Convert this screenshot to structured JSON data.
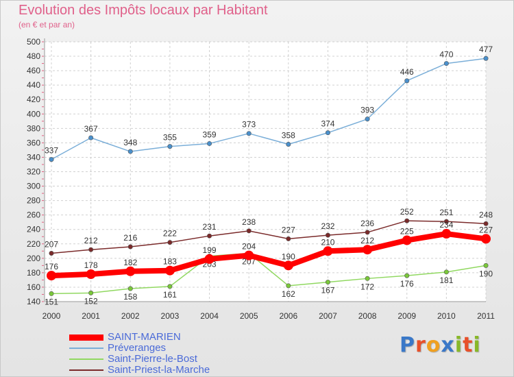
{
  "header": {
    "title": "Evolution des Impôts locaux par Habitant",
    "subtitle": "(en € et par an)"
  },
  "logo": {
    "text": "Proxiti",
    "letter_colors": [
      "#3a78c8",
      "#e8502a",
      "#f0a020",
      "#3a78c8",
      "#88b828",
      "#e8502a",
      "#88b828"
    ]
  },
  "colors": {
    "title": "#e0608a",
    "axis_labels": "#333333",
    "grid": "#d0d0d0"
  },
  "chart_data": {
    "type": "line",
    "x": [
      "2000",
      "2001",
      "2002",
      "2003",
      "2004",
      "2005",
      "2006",
      "2007",
      "2008",
      "2009",
      "2010",
      "2011"
    ],
    "ylim": [
      140,
      500
    ],
    "yticks": [
      140,
      160,
      180,
      200,
      220,
      240,
      260,
      280,
      300,
      320,
      340,
      360,
      380,
      400,
      420,
      440,
      460,
      480,
      500
    ],
    "grid": true,
    "legend_position": "bottom-left",
    "series": [
      {
        "name": "Saint-Priest-la-Marche",
        "color": "#7a2a2a",
        "point_color": "#7a2a2a",
        "thick": false,
        "label_offset": -1,
        "values": [
          207,
          212,
          216,
          222,
          231,
          238,
          227,
          232,
          236,
          252,
          251,
          248
        ]
      },
      {
        "name": "Saint-Pierre-le-Bost",
        "color": "#90d860",
        "point_color": "#7ac83a",
        "thick": false,
        "label_offset": 1,
        "values": [
          151,
          152,
          158,
          161,
          203,
          207,
          162,
          167,
          172,
          176,
          181,
          190
        ]
      },
      {
        "name": "Préveranges",
        "color": "#7aaed8",
        "point_color": "#4a90cc",
        "thick": false,
        "label_offset": -1,
        "values": [
          337,
          367,
          348,
          355,
          359,
          373,
          358,
          374,
          393,
          446,
          470,
          477
        ]
      },
      {
        "name": "SAINT-MARIEN",
        "color": "#ff0000",
        "point_color": "#ff0000",
        "thick": true,
        "label_offset": -1,
        "values": [
          176,
          178,
          182,
          183,
          199,
          204,
          190,
          210,
          212,
          225,
          234,
          227
        ]
      }
    ],
    "legend_order": [
      "SAINT-MARIEN",
      "Préveranges",
      "Saint-Pierre-le-Bost",
      "Saint-Priest-la-Marche"
    ],
    "legend_text_color": "#4a6ad8"
  }
}
